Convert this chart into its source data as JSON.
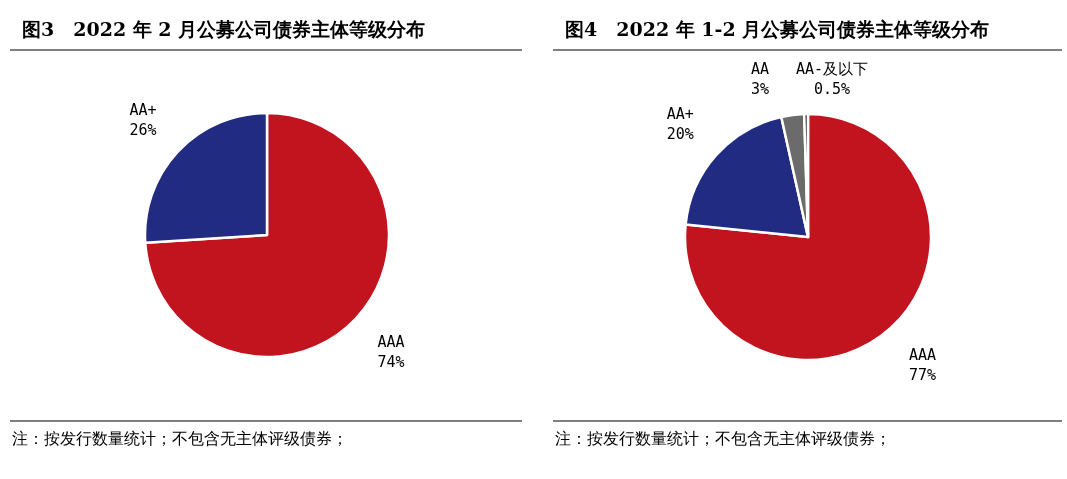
{
  "chart_data": [
    {
      "type": "pie",
      "title": "图3　2022 年 2 月公募公司债券主体等级分布",
      "categories": [
        "AAA",
        "AA+"
      ],
      "values": [
        74,
        26
      ],
      "value_labels": [
        "74%",
        "26%"
      ],
      "colors": [
        "#c1141f",
        "#212b82"
      ],
      "annotations": [
        "注：按发行数量统计；不包含无主体评级债券；"
      ]
    },
    {
      "type": "pie",
      "title": "图4　2022 年 1-2 月公募公司债券主体等级分布",
      "categories": [
        "AAA",
        "AA+",
        "AA",
        "AA-及以下"
      ],
      "values": [
        77,
        20,
        3,
        0.5
      ],
      "value_labels": [
        "77%",
        "20%",
        "3%",
        "0.5%"
      ],
      "colors": [
        "#c1141f",
        "#212b82",
        "#6b6b6b",
        "#3a3a3a"
      ],
      "annotations": [
        "注：按发行数量统计；不包含无主体评级债券；"
      ]
    }
  ]
}
